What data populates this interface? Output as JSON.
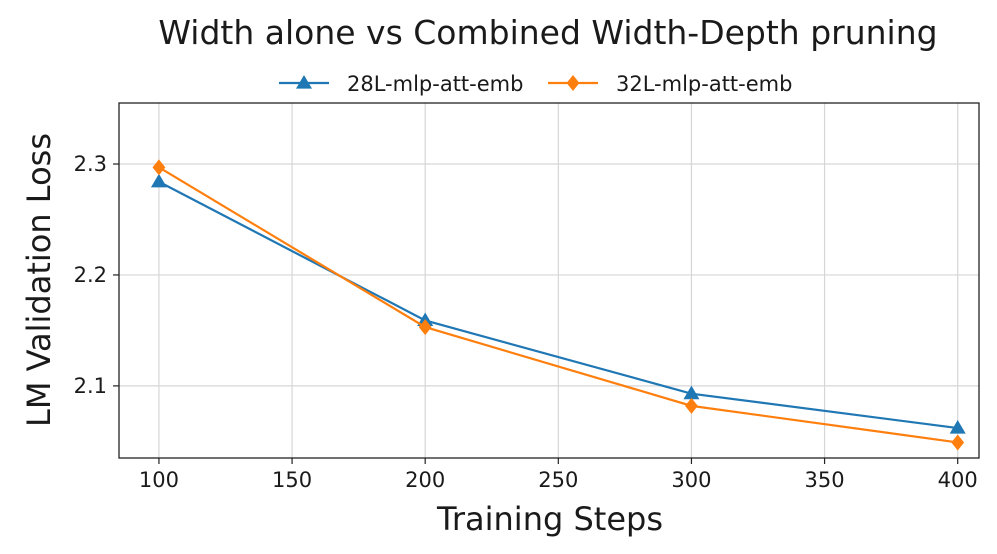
{
  "chart_data": {
    "type": "line",
    "title": "Width alone vs Combined Width-Depth pruning",
    "xlabel": "Training Steps",
    "ylabel": "LM Validation Loss",
    "xlim": [
      85,
      408
    ],
    "ylim": [
      2.035,
      2.355
    ],
    "xticks": [
      100,
      150,
      200,
      250,
      300,
      350,
      400
    ],
    "yticks": [
      2.1,
      2.2,
      2.3
    ],
    "xtick_labels": [
      "100",
      "150",
      "200",
      "250",
      "300",
      "350",
      "400"
    ],
    "ytick_labels": [
      "2.1",
      "2.2",
      "2.3"
    ],
    "grid": true,
    "legend_position": "top-center",
    "x": [
      100,
      200,
      300,
      400
    ],
    "series": [
      {
        "name": "28L-mlp-att-emb",
        "values": [
          2.284,
          2.159,
          2.093,
          2.062
        ],
        "color": "#1f77b4",
        "marker": "triangle"
      },
      {
        "name": "32L-mlp-att-emb",
        "values": [
          2.297,
          2.153,
          2.082,
          2.049
        ],
        "color": "#ff7f0e",
        "marker": "diamond"
      }
    ]
  }
}
